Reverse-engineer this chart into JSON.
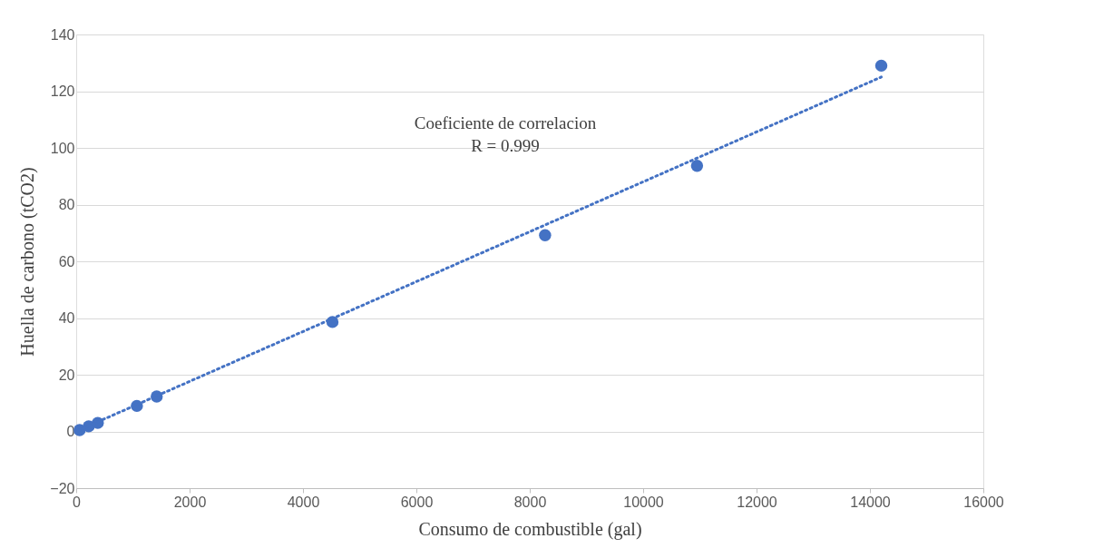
{
  "chart_data": {
    "type": "scatter",
    "xlabel": "Consumo de combustible (gal)",
    "ylabel": "Huella de carbono (tCO2)",
    "annotations": [
      "Coeficiente de correlacion",
      "R = 0.999"
    ],
    "xlim": [
      0,
      16000
    ],
    "xticks": [
      0,
      2000,
      4000,
      6000,
      8000,
      10000,
      12000,
      14000,
      16000
    ],
    "ylim": [
      -20,
      140
    ],
    "yticks": [
      -20,
      0,
      20,
      40,
      60,
      80,
      100,
      120,
      140
    ],
    "grid": "y",
    "series": [
      {
        "color": "#4472c4",
        "marker": "circle",
        "x": [
          60,
          220,
          380,
          1070,
          1420,
          4520,
          8270,
          10950,
          14200
        ],
        "values": [
          0.5,
          1.8,
          3.0,
          9.0,
          12.3,
          38.6,
          69.2,
          93.7,
          129.0
        ]
      },
      {
        "type": "line",
        "color": "#4472c4",
        "line_style": "dotted",
        "x": [
          30,
          14200
        ],
        "values": [
          0.3,
          125.0
        ]
      }
    ]
  }
}
